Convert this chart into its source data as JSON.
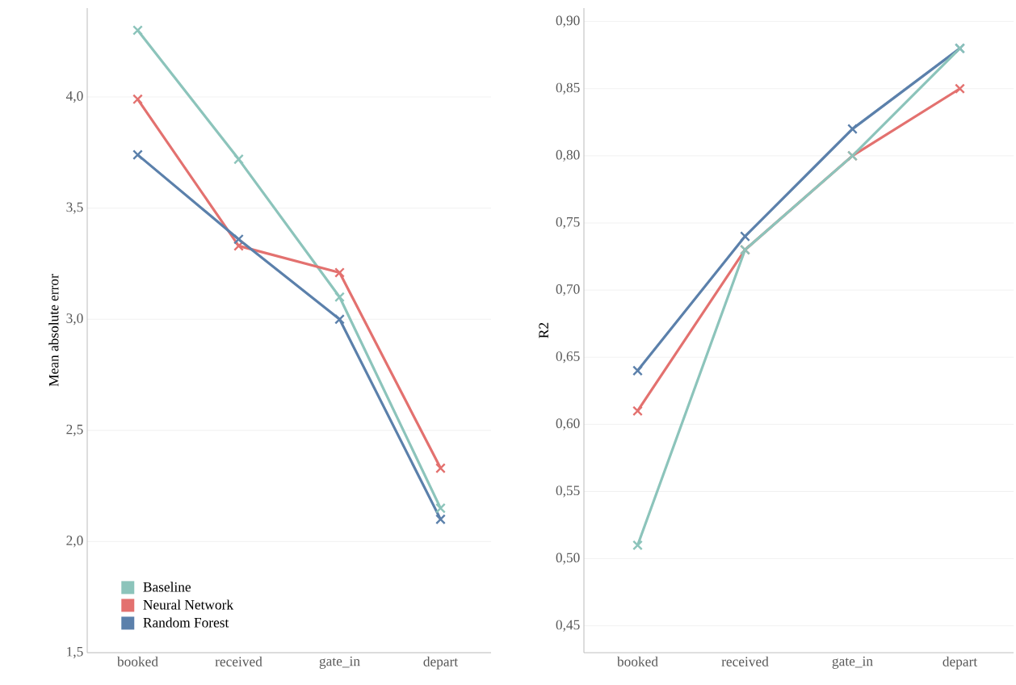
{
  "chart_data": [
    {
      "type": "line",
      "ylabel": "Mean absolute error",
      "categories": [
        "booked",
        "received",
        "gate_in",
        "depart"
      ],
      "ylim": [
        1.5,
        4.4
      ],
      "yticks": [
        {
          "value": 1.5,
          "label": "1,5"
        },
        {
          "value": 2.0,
          "label": "2,0"
        },
        {
          "value": 2.5,
          "label": "2,5"
        },
        {
          "value": 3.0,
          "label": "3,0"
        },
        {
          "value": 3.5,
          "label": "3,5"
        },
        {
          "value": 4.0,
          "label": "4,0"
        }
      ],
      "grid": "y",
      "legend": "bottom left",
      "marker": "cross",
      "series": [
        {
          "name": "Baseline",
          "color": "#8cc4bb",
          "values": [
            4.3,
            3.72,
            3.1,
            2.15
          ]
        },
        {
          "name": "Neural Network",
          "color": "#e3716f",
          "values": [
            3.99,
            3.33,
            3.21,
            2.33
          ]
        },
        {
          "name": "Random Forest",
          "color": "#5b80ab",
          "values": [
            3.74,
            3.36,
            3.0,
            2.1
          ]
        }
      ]
    },
    {
      "type": "line",
      "ylabel": "R2",
      "categories": [
        "booked",
        "received",
        "gate_in",
        "depart"
      ],
      "ylim": [
        0.43,
        0.91
      ],
      "yticks": [
        {
          "value": 0.45,
          "label": "0,45"
        },
        {
          "value": 0.5,
          "label": "0,50"
        },
        {
          "value": 0.55,
          "label": "0,55"
        },
        {
          "value": 0.6,
          "label": "0,60"
        },
        {
          "value": 0.65,
          "label": "0,65"
        },
        {
          "value": 0.7,
          "label": "0,70"
        },
        {
          "value": 0.75,
          "label": "0,75"
        },
        {
          "value": 0.8,
          "label": "0,80"
        },
        {
          "value": 0.85,
          "label": "0,85"
        },
        {
          "value": 0.9,
          "label": "0,90"
        }
      ],
      "grid": "y",
      "marker": "cross",
      "series": [
        {
          "color": "#5b80ab",
          "values": [
            0.64,
            0.74,
            0.82,
            0.88
          ]
        },
        {
          "color": "#e3716f",
          "values": [
            0.61,
            0.73,
            0.8,
            0.85
          ]
        },
        {
          "color": "#8cc4bb",
          "values": [
            0.51,
            0.73,
            0.8,
            0.88
          ]
        }
      ]
    }
  ]
}
